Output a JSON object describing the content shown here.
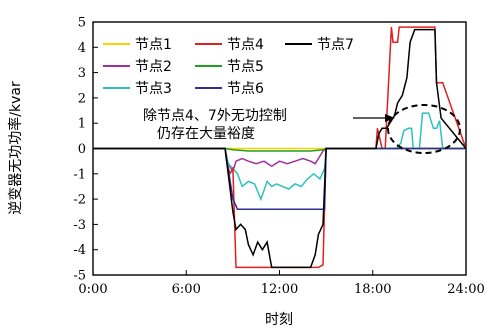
{
  "chart_data": {
    "type": "line",
    "xlabel": "时刻",
    "ylabel": "逆变器无功功率/kvar",
    "xlim": [
      0,
      24
    ],
    "ylim": [
      -5,
      5
    ],
    "x_ticks": [
      "0:00",
      "6:00",
      "12:00",
      "18:00",
      "24:00"
    ],
    "y_ticks": [
      "5",
      "4",
      "3",
      "2",
      "1",
      "0",
      "-1",
      "-2",
      "-3",
      "-4",
      "-5"
    ],
    "legend_position": "top-left",
    "annotation": [
      "除节点4、7外无功控制",
      "仍存在大量裕度"
    ],
    "series": [
      {
        "name": "节点1",
        "color": "#f5d800",
        "x": [
          0,
          8.5,
          9,
          10,
          11,
          12,
          13,
          14,
          15,
          18,
          24
        ],
        "y": [
          0,
          0,
          0,
          0,
          0,
          0,
          0,
          0,
          0,
          0,
          0
        ]
      },
      {
        "name": "节点2",
        "color": "#a030a0",
        "x": [
          0,
          8.5,
          8.6,
          9.0,
          9.2,
          9.6,
          10.0,
          10.5,
          11.0,
          11.5,
          12.0,
          12.5,
          13.0,
          13.5,
          14.0,
          14.3,
          14.6,
          14.8,
          15.0,
          24
        ],
        "y": [
          0,
          0,
          -0.5,
          -0.9,
          -0.5,
          -0.4,
          -0.5,
          -0.6,
          -0.5,
          -0.7,
          -0.5,
          -0.6,
          -0.5,
          -0.4,
          -0.5,
          -0.6,
          -0.3,
          -0.1,
          0,
          0
        ]
      },
      {
        "name": "节点3",
        "color": "#30c0c0",
        "x": [
          0,
          8.5,
          8.7,
          9.0,
          9.3,
          9.6,
          10.0,
          10.4,
          10.8,
          11.2,
          11.5,
          11.8,
          12.2,
          12.6,
          13.0,
          13.4,
          13.8,
          14.2,
          14.6,
          14.9,
          15.0,
          19.5,
          19.8,
          20.0,
          20.3,
          20.5,
          20.6,
          21.0,
          21.2,
          21.6,
          21.9,
          22.1,
          22.3,
          22.5,
          24
        ],
        "y": [
          0,
          0,
          -0.6,
          -0.8,
          -1.0,
          -1.5,
          -1.3,
          -1.4,
          -2.0,
          -1.3,
          -1.5,
          -1.4,
          -1.5,
          -1.6,
          -1.4,
          -1.5,
          -1.2,
          -1.0,
          -1.2,
          -0.8,
          0,
          0,
          0.2,
          0.7,
          0.8,
          0.8,
          0,
          0,
          1.4,
          1.4,
          0.8,
          0.8,
          1.1,
          0,
          0
        ]
      },
      {
        "name": "节点4",
        "color": "#e02020",
        "x": [
          0,
          8.5,
          8.6,
          8.8,
          9.0,
          9.2,
          9.5,
          10.0,
          10.5,
          11.0,
          11.5,
          12.0,
          12.5,
          13.0,
          13.5,
          14.0,
          14.5,
          14.8,
          15.0,
          18.2,
          18.3,
          18.6,
          18.8,
          19.2,
          19.3,
          19.6,
          19.7,
          20.0,
          20.1,
          21.0,
          22.0,
          22.1,
          22.5,
          24
        ],
        "y": [
          0,
          0,
          -0.5,
          -1.0,
          -0.8,
          -4.7,
          -4.7,
          -4.7,
          -4.7,
          -4.7,
          -4.7,
          -4.7,
          -4.7,
          -4.7,
          -4.7,
          -4.7,
          -4.7,
          -4.6,
          0,
          0,
          0.8,
          0,
          0,
          4.8,
          4.2,
          4.2,
          4.8,
          4.8,
          4.8,
          4.8,
          4.8,
          2.6,
          2.6,
          0
        ]
      },
      {
        "name": "节点5",
        "color": "#20a020",
        "x": [
          0,
          8.5,
          9.0,
          10.0,
          11.0,
          12.0,
          13.0,
          14.0,
          14.8,
          15.0,
          24
        ],
        "y": [
          0,
          0,
          -0.05,
          -0.1,
          -0.1,
          -0.1,
          -0.1,
          -0.1,
          -0.05,
          0,
          0
        ]
      },
      {
        "name": "节点6",
        "color": "#303090",
        "x": [
          0,
          8.5,
          8.7,
          9.0,
          9.3,
          9.7,
          10.0,
          10.5,
          11.0,
          11.5,
          12.0,
          12.5,
          13.0,
          13.5,
          14.0,
          14.5,
          14.9,
          15.0,
          24
        ],
        "y": [
          0,
          0,
          -0.8,
          -2.0,
          -2.4,
          -2.4,
          -2.4,
          -2.4,
          -2.4,
          -2.4,
          -2.4,
          -2.4,
          -2.4,
          -2.4,
          -2.4,
          -2.4,
          -2.4,
          0,
          0
        ]
      },
      {
        "name": "节点7",
        "color": "#000000",
        "x": [
          0,
          8.5,
          8.7,
          9.0,
          9.2,
          9.5,
          9.8,
          10.0,
          10.3,
          10.6,
          10.9,
          11.2,
          11.5,
          12.0,
          12.5,
          13.0,
          13.5,
          14.0,
          14.3,
          14.5,
          14.8,
          15.0,
          18.2,
          18.4,
          18.6,
          18.9,
          19.1,
          19.4,
          19.6,
          19.9,
          20.2,
          20.4,
          20.7,
          21.0,
          21.5,
          22.0,
          22.1,
          22.4,
          24
        ],
        "y": [
          0,
          0,
          -1.0,
          -2.5,
          -3.2,
          -3.0,
          -3.2,
          -3.8,
          -4.2,
          -3.7,
          -4.0,
          -3.7,
          -4.7,
          -4.7,
          -4.7,
          -4.7,
          -4.7,
          -4.7,
          -4.2,
          -3.4,
          -3.0,
          0,
          0,
          0.6,
          0.8,
          0.8,
          1.0,
          1.3,
          1.8,
          2.1,
          2.8,
          4.2,
          4.7,
          4.7,
          4.7,
          4.7,
          2.6,
          1.2,
          0
        ]
      }
    ]
  }
}
